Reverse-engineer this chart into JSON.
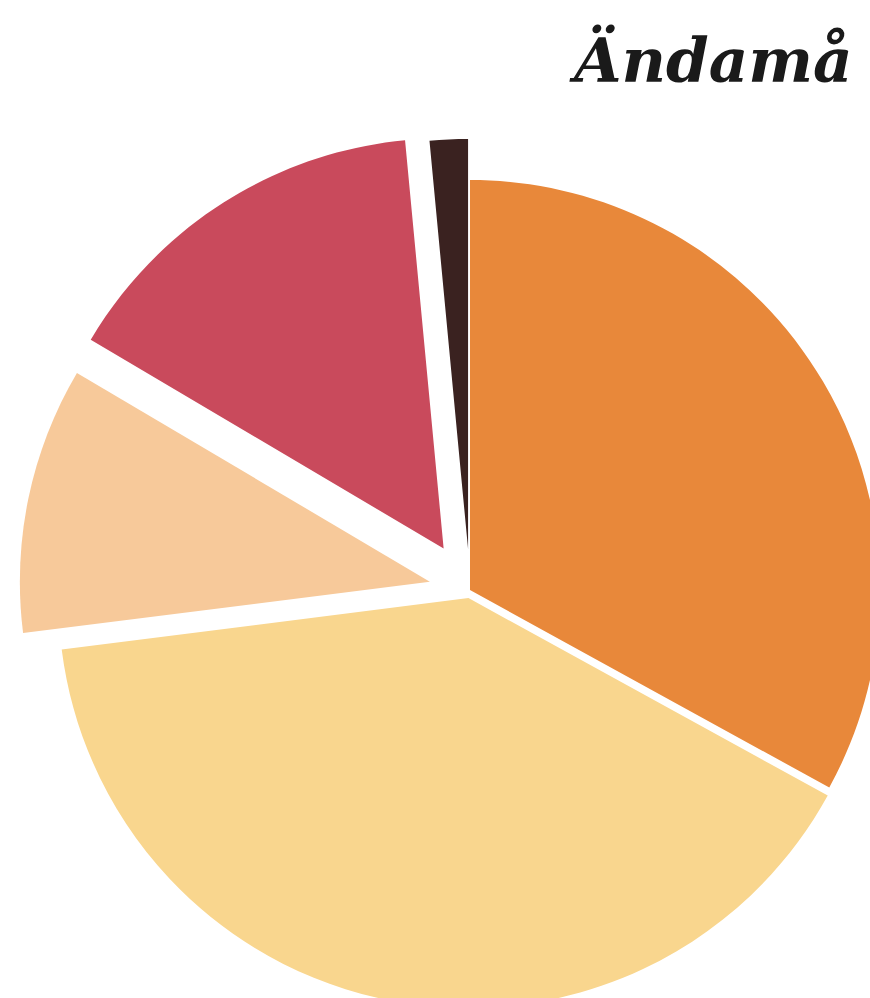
{
  "chart_data": {
    "type": "pie",
    "title": "Ändamå",
    "categories": [
      null,
      null,
      null,
      null,
      null
    ],
    "values": [
      33,
      40,
      10.5,
      15,
      1.5
    ],
    "colors": [
      "#e8883a",
      "#f9d68e",
      "#f7c99a",
      "#c94a5c",
      "#3a2220"
    ]
  }
}
